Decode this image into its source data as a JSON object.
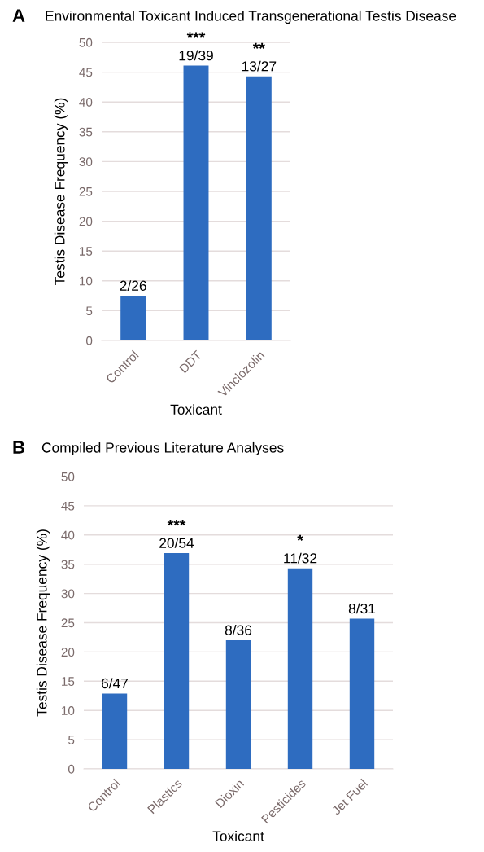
{
  "chart_data": [
    {
      "type": "bar",
      "title": "Environmental Toxicant Induced Transgenerational Testis Disease",
      "xlabel": "Toxicant",
      "ylabel": "Testis Disease Frequency (%)",
      "categories": [
        "Control",
        "DDT",
        "Vinclozolin"
      ],
      "values": [
        7.5,
        46.1,
        44.3
      ],
      "color": "#2e6cc0",
      "value_labels": [
        "2/26",
        "19/39",
        "13/27"
      ],
      "ylim": [
        0,
        50
      ],
      "yticks": [
        0,
        5,
        10,
        15,
        20,
        25,
        30,
        35,
        40,
        45,
        50
      ],
      "grid": "y",
      "annotations": [
        "A",
        {
          "text": "***",
          "x": "DDT",
          "y": 46.1
        },
        {
          "text": "**",
          "x": "Vinclozolin",
          "y": 44.3
        }
      ]
    },
    {
      "type": "bar",
      "title": "Compiled Previous Literature Analyses",
      "xlabel": "Toxicant",
      "ylabel": "Testis Disease Frequency (%)",
      "categories": [
        "Control",
        "Plastics",
        "Dioxin",
        "Pesticides",
        "Jet Fuel"
      ],
      "values": [
        12.9,
        36.9,
        22.0,
        34.3,
        25.7
      ],
      "color": "#2e6cc0",
      "value_labels": [
        "6/47",
        "20/54",
        "8/36",
        "11/32",
        "8/31"
      ],
      "ylim": [
        0,
        50
      ],
      "yticks": [
        0,
        5,
        10,
        15,
        20,
        25,
        30,
        35,
        40,
        45,
        50
      ],
      "grid": "y",
      "annotations": [
        "B",
        {
          "text": "***",
          "x": "Plastics",
          "y": 36.9
        },
        {
          "text": "*",
          "x": "Pesticides",
          "y": 34.3
        }
      ]
    }
  ]
}
